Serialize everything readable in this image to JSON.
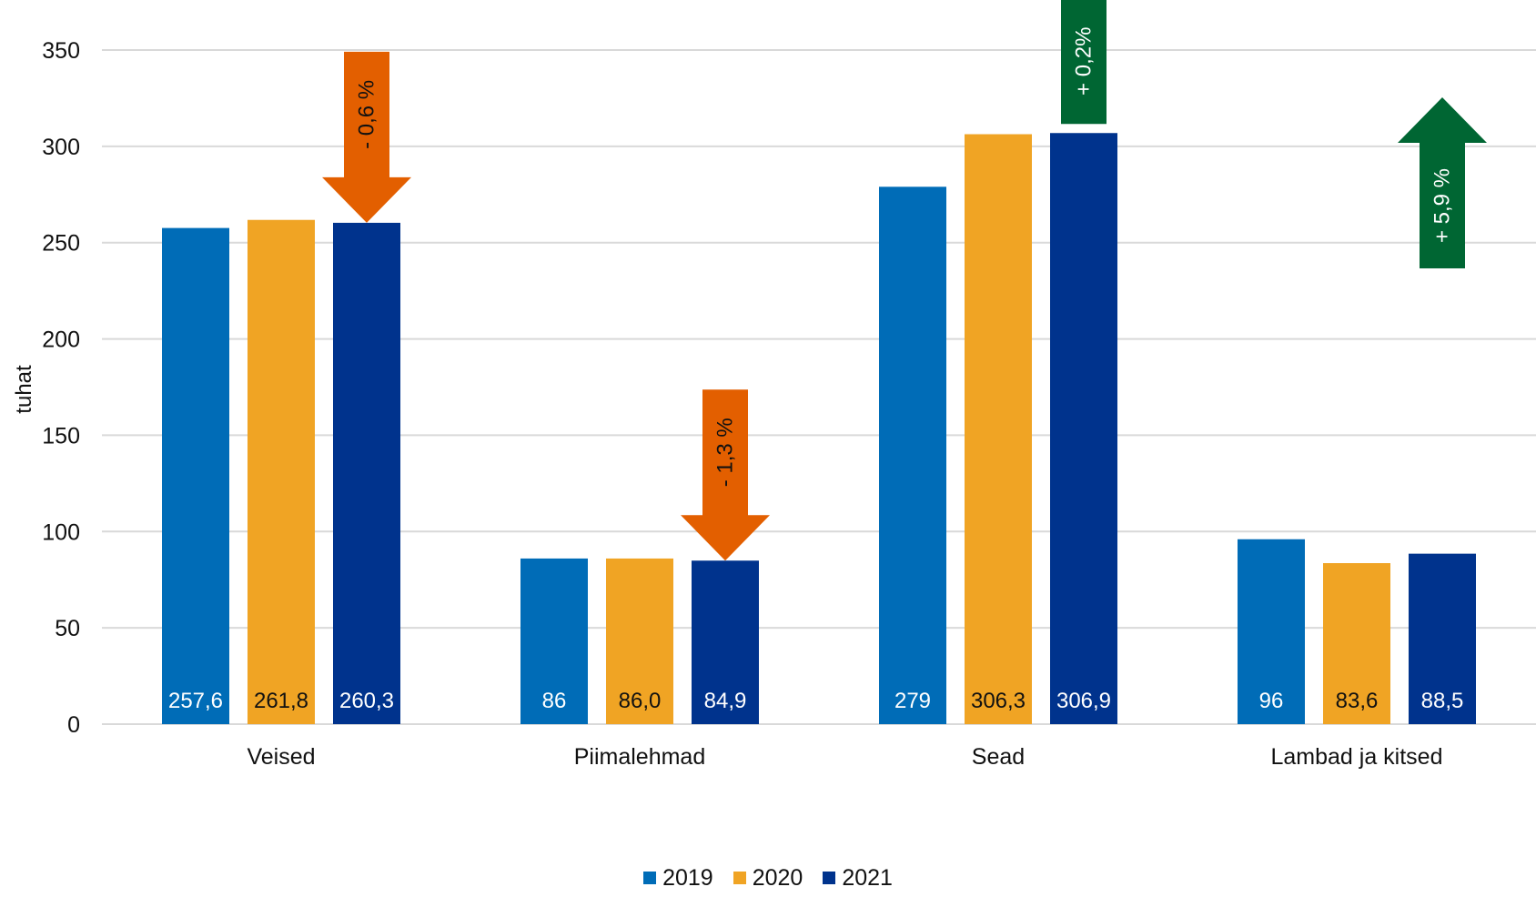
{
  "chart_data": {
    "type": "bar",
    "ylabel": "tuhat",
    "ylim": [
      0,
      350
    ],
    "yticks": [
      0,
      50,
      100,
      150,
      200,
      250,
      300,
      350
    ],
    "grid": true,
    "legend_position": "bottom",
    "categories": [
      "Veised",
      "Piimalehmad",
      "Sead",
      "Lambad ja kitsed"
    ],
    "series": [
      {
        "name": "2019",
        "color": "#006CB7",
        "label_color": "#FFFFFF",
        "values": [
          257.6,
          86,
          279,
          96
        ],
        "labels": [
          "257,6",
          "86",
          "279",
          "96"
        ]
      },
      {
        "name": "2020",
        "color": "#F0A424",
        "label_color": "#111111",
        "values": [
          261.8,
          86.0,
          306.3,
          83.6
        ],
        "labels": [
          "261,8",
          "86,0",
          "306,3",
          "83,6"
        ]
      },
      {
        "name": "2021",
        "color": "#00338D",
        "label_color": "#FFFFFF",
        "values": [
          260.3,
          84.9,
          306.9,
          88.5
        ],
        "labels": [
          "260,3",
          "84,9",
          "306,9",
          "88,5"
        ]
      }
    ],
    "annotations": [
      {
        "category": "Veised",
        "direction": "down",
        "text": "- 0,6 %",
        "color": "#E35F00",
        "text_color": "#111111"
      },
      {
        "category": "Piimalehmad",
        "direction": "down",
        "text": "- 1,3 %",
        "color": "#E35F00",
        "text_color": "#111111"
      },
      {
        "category": "Sead",
        "direction": "up",
        "text": "+ 0,2%",
        "color": "#006633",
        "text_color": "#FFFFFF"
      },
      {
        "category": "Lambad ja kitsed",
        "direction": "up",
        "text": "+ 5,9 %",
        "color": "#006633",
        "text_color": "#FFFFFF"
      }
    ],
    "grid_color": "#D9D9D9"
  }
}
